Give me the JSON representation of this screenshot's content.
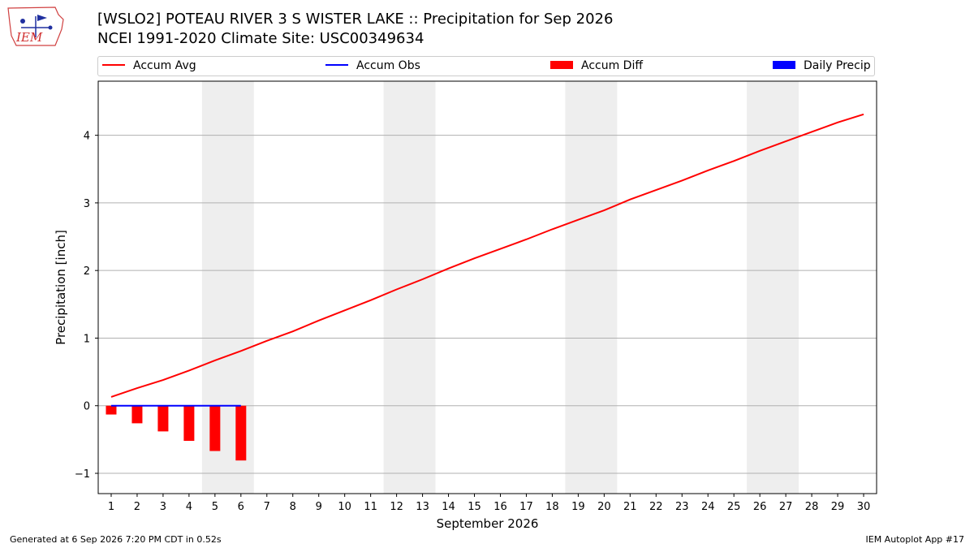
{
  "title_line1": "[WSLO2] POTEAU RIVER 3 S WISTER LAKE :: Precipitation for Sep 2026",
  "title_line2": "NCEI 1991-2020 Climate Site: USC00349634",
  "logo_text": "IEM",
  "footer_left": "Generated at 6 Sep 2026 7:20 PM CDT in 0.52s",
  "footer_right": "IEM Autoplot App #17",
  "legend": [
    {
      "label": "Accum Avg",
      "kind": "line",
      "color": "#ff0000"
    },
    {
      "label": "Accum Obs",
      "kind": "line",
      "color": "#0000ff"
    },
    {
      "label": "Accum Diff",
      "kind": "box",
      "color": "#ff0000"
    },
    {
      "label": "Daily Precip",
      "kind": "box",
      "color": "#0000ff"
    }
  ],
  "colors": {
    "avg": "#ff0000",
    "obs": "#0000ff",
    "diff": "#ff0000",
    "weekend": "#eeeeee",
    "grid": "#b0b0b0"
  },
  "chart_data": {
    "type": "line",
    "xlabel": "September 2026",
    "ylabel": "Precipitation [inch]",
    "xlim": [
      0.5,
      30.5
    ],
    "ylim": [
      -1.3,
      4.8
    ],
    "x_ticks": [
      1,
      2,
      3,
      4,
      5,
      6,
      7,
      8,
      9,
      10,
      11,
      12,
      13,
      14,
      15,
      16,
      17,
      18,
      19,
      20,
      21,
      22,
      23,
      24,
      25,
      26,
      27,
      28,
      29,
      30
    ],
    "y_ticks": [
      -1,
      0,
      1,
      2,
      3,
      4
    ],
    "y_tick_labels": [
      "−1",
      "0",
      "1",
      "2",
      "3",
      "4"
    ],
    "grid": "horizontal",
    "weekend_spans": [
      [
        4.5,
        6.5
      ],
      [
        11.5,
        13.5
      ],
      [
        18.5,
        20.5
      ],
      [
        25.5,
        27.5
      ]
    ],
    "series": [
      {
        "name": "Accum Avg",
        "type": "line",
        "x": [
          1,
          2,
          3,
          4,
          5,
          6,
          7,
          8,
          9,
          10,
          11,
          12,
          13,
          14,
          15,
          16,
          17,
          18,
          19,
          20,
          21,
          22,
          23,
          24,
          25,
          26,
          27,
          28,
          29,
          30
        ],
        "values": [
          0.13,
          0.26,
          0.38,
          0.52,
          0.67,
          0.81,
          0.96,
          1.1,
          1.26,
          1.41,
          1.56,
          1.72,
          1.87,
          2.03,
          2.18,
          2.32,
          2.46,
          2.61,
          2.75,
          2.89,
          3.05,
          3.19,
          3.33,
          3.48,
          3.62,
          3.77,
          3.91,
          4.05,
          4.19,
          4.31
        ]
      },
      {
        "name": "Accum Obs",
        "type": "line",
        "x": [
          1,
          2,
          3,
          4,
          5,
          6
        ],
        "values": [
          0,
          0,
          0,
          0,
          0,
          0
        ]
      },
      {
        "name": "Accum Diff",
        "type": "bar",
        "x": [
          1,
          2,
          3,
          4,
          5,
          6
        ],
        "values": [
          -0.13,
          -0.26,
          -0.38,
          -0.52,
          -0.67,
          -0.81
        ]
      },
      {
        "name": "Daily Precip",
        "type": "bar",
        "x": [
          1,
          2,
          3,
          4,
          5,
          6
        ],
        "values": [
          0,
          0,
          0,
          0,
          0,
          0
        ]
      }
    ]
  }
}
